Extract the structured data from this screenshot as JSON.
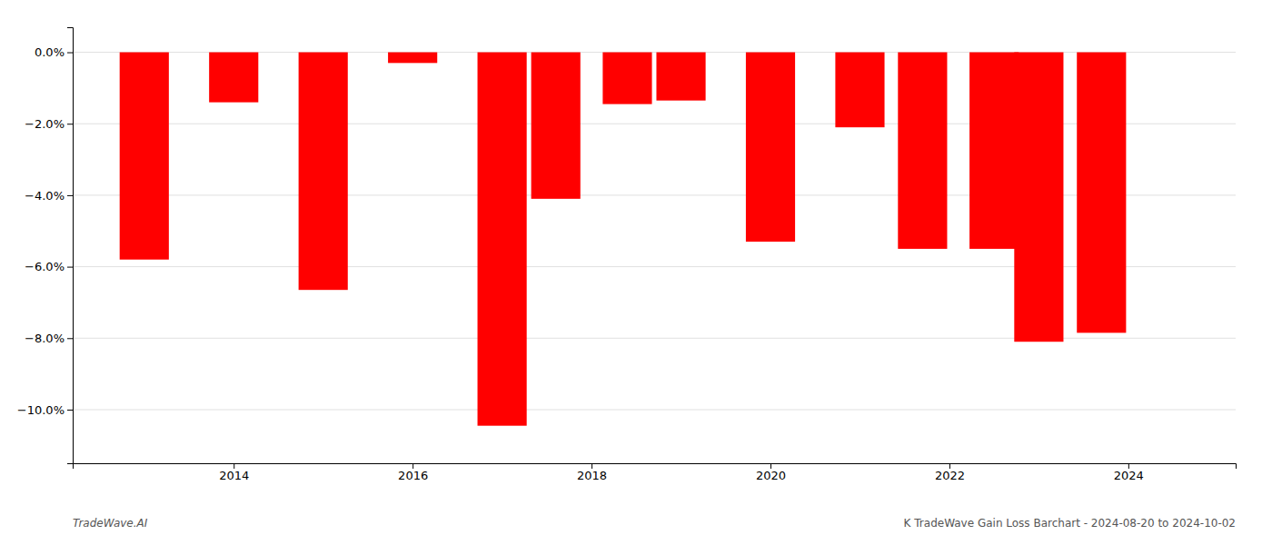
{
  "chart_data": {
    "type": "bar",
    "x": [
      2013,
      2014,
      2015,
      2016,
      2017,
      2017.6,
      2018.4,
      2019,
      2020,
      2021,
      2021.7,
      2022.5,
      2023,
      2023.7
    ],
    "values": [
      -5.8,
      -1.4,
      -6.65,
      -0.3,
      -10.45,
      -4.1,
      -1.45,
      -1.35,
      -5.3,
      -2.1,
      -5.5,
      -5.5,
      -8.1,
      -7.85
    ],
    "color": "#ff0000",
    "xlim": [
      2012.2,
      2025.2
    ],
    "xticks": [
      2014,
      2016,
      2018,
      2020,
      2022,
      2024
    ],
    "ylim": [
      -11.5,
      0.7
    ],
    "yticks": [
      {
        "value": 0.0,
        "label": "0.0%"
      },
      {
        "value": -2.0,
        "label": "−2.0%"
      },
      {
        "value": -4.0,
        "label": "−4.0%"
      },
      {
        "value": -6.0,
        "label": "−6.0%"
      },
      {
        "value": -8.0,
        "label": "−8.0%"
      },
      {
        "value": -10.0,
        "label": "−10.0%"
      }
    ],
    "grid": true,
    "annotations": [
      "TradeWave.AI",
      "K TradeWave Gain Loss Barchart - 2024-08-20 to 2024-10-02"
    ]
  }
}
